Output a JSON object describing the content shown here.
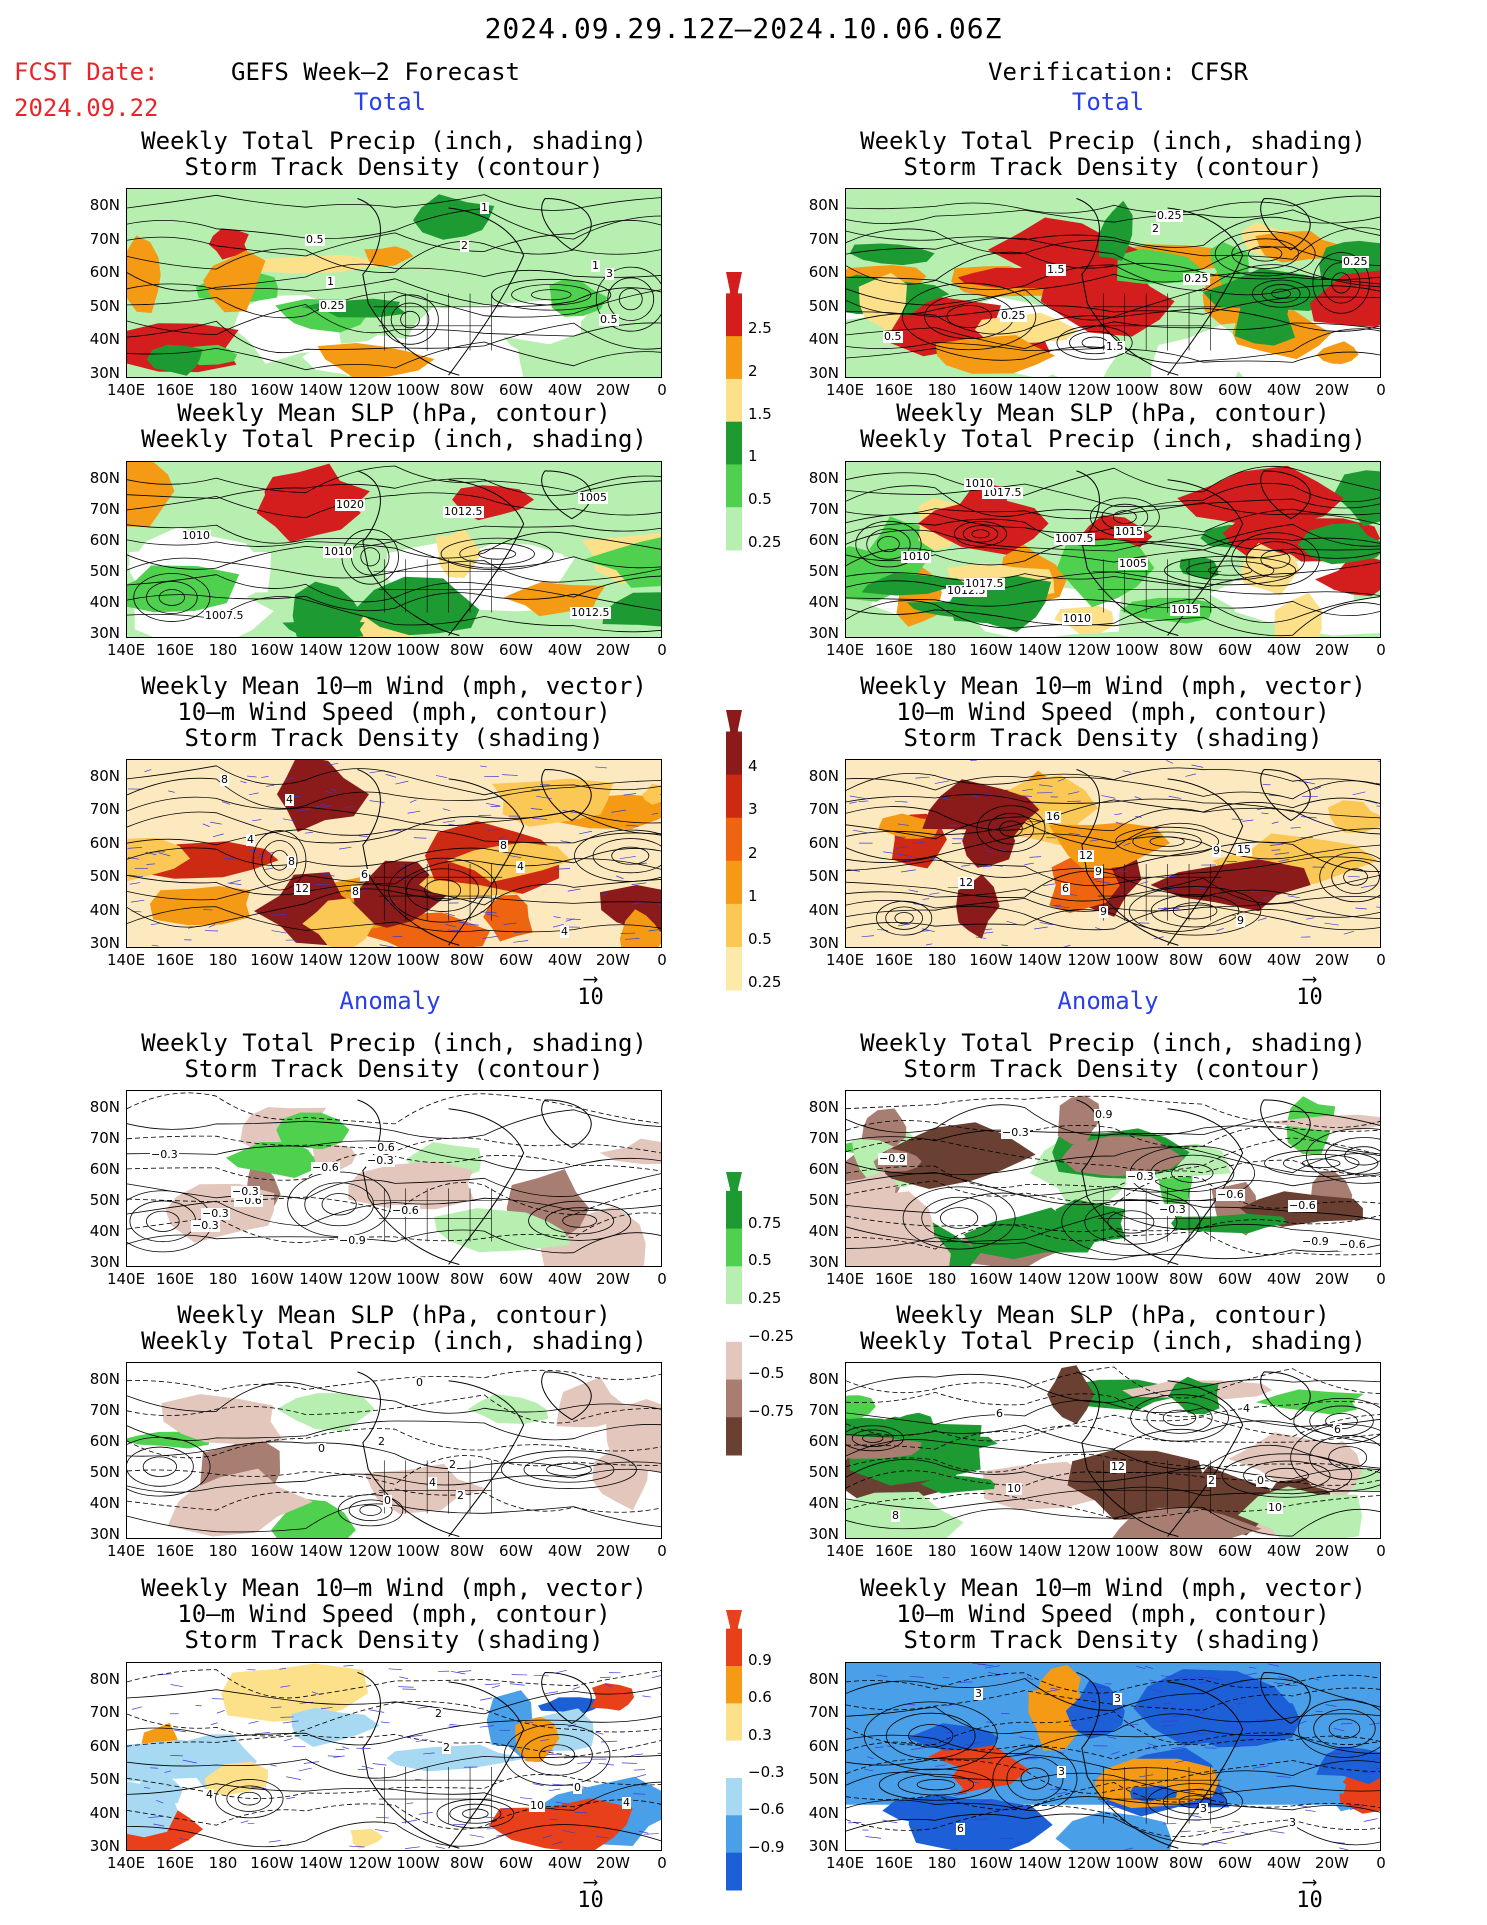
{
  "header": {
    "date_range": "2024.09.29.12Z–2024.10.06.06Z",
    "fcst_label": "FCST Date:",
    "fcst_date": "2024.09.22",
    "left_title": "GEFS Week–2 Forecast",
    "right_title": "Verification: CFSR",
    "section_total": "Total",
    "section_anomaly": "Anomaly"
  },
  "panel_titles": {
    "precip_storm": [
      "Weekly Total Precip (inch, shading)",
      "Storm Track Density (contour)"
    ],
    "slp_precip": [
      "Weekly Mean SLP (hPa, contour)",
      "Weekly Total Precip (inch, shading)"
    ],
    "wind_storm": [
      "Weekly Mean 10–m Wind (mph, vector)",
      "10–m Wind Speed (mph, contour)",
      "Storm Track Density (shading)"
    ]
  },
  "axes": {
    "lat_labels": [
      "80N",
      "70N",
      "60N",
      "50N",
      "40N",
      "30N"
    ],
    "lon_labels": [
      "140E",
      "160E",
      "180",
      "160W",
      "140W",
      "120W",
      "100W",
      "80W",
      "60W",
      "40W",
      "20W",
      "0"
    ]
  },
  "vector_ref": "10",
  "colorbars": {
    "precip_total": {
      "labels": [
        "2.5",
        "2",
        "1.5",
        "1",
        "0.5",
        "0.25"
      ],
      "colors": [
        "#d41e1e",
        "#f59a14",
        "#fde08a",
        "#1e9a32",
        "#4fd14f",
        "#b7efb0"
      ]
    },
    "storm_total": {
      "labels": [
        "4",
        "3",
        "2",
        "1",
        "0.5",
        "0.25"
      ],
      "colors": [
        "#8b1a1a",
        "#cc2a12",
        "#ee6410",
        "#f59a14",
        "#fcc855",
        "#fdeaa8"
      ]
    },
    "precip_anom": {
      "labels": [
        "0.75",
        "0.5",
        "0.25",
        "−0.25",
        "−0.5",
        "−0.75"
      ],
      "colors": [
        "#1e9a32",
        "#4fd14f",
        "#b7efb0",
        "#ffffff",
        "#e3c6bc",
        "#a87e72",
        "#6a4032"
      ]
    },
    "storm_anom": {
      "labels": [
        "0.9",
        "0.6",
        "0.3",
        "−0.3",
        "−0.6",
        "−0.9"
      ],
      "colors": [
        "#e8401a",
        "#f59a14",
        "#fde08a",
        "#ffffff",
        "#a7d9f2",
        "#4aa0e8",
        "#1d5fd6"
      ]
    }
  },
  "contour_labels": {
    "fc_precip": [
      "0.5",
      "1",
      "2",
      "3",
      "1",
      "0.5",
      "0.25",
      "1"
    ],
    "fc_slp": [
      "1012.5",
      "1010",
      "1005",
      "1010",
      "1012.5",
      "1007.5",
      "1020"
    ],
    "fc_wind": [
      "6",
      "4",
      "8",
      "4",
      "4",
      "4",
      "8",
      "8",
      "12",
      "8"
    ],
    "ob_precip": [
      "0.25",
      "1.5",
      "0.25",
      "0.25",
      "0.25",
      "0.5",
      "1.5",
      "2"
    ],
    "ob_slp": [
      "1012.5",
      "1015",
      "1005",
      "1010",
      "1017.5",
      "1010",
      "1010",
      "1007.5",
      "1017.5",
      "1015"
    ],
    "ob_wind": [
      "9",
      "9",
      "15",
      "9",
      "9",
      "16",
      "12",
      "12",
      "6"
    ],
    "fa_precip": [
      "−0.3",
      "−0.6",
      "−0.9",
      "−0.6",
      "−0.3",
      "−0.3",
      "−0.6",
      "−0.3",
      "−0.6",
      "−0.3"
    ],
    "oa_precip": [
      "−0.3",
      "−0.9",
      "−0.9",
      "−0.6",
      "−0.6",
      "−0.3",
      "0.9",
      "−0.6",
      "−0.3"
    ],
    "fa_slp": [
      "0",
      "2",
      "2",
      "4",
      "0",
      "2",
      "0"
    ],
    "oa_slp": [
      "10",
      "8",
      "6",
      "10",
      "6",
      "2",
      "12",
      "4",
      "0"
    ],
    "fa_wind": [
      "4",
      "2",
      "0",
      "4",
      "2",
      "10"
    ],
    "oa_wind": [
      "3",
      "6",
      "3",
      "3",
      "3",
      "3"
    ]
  }
}
